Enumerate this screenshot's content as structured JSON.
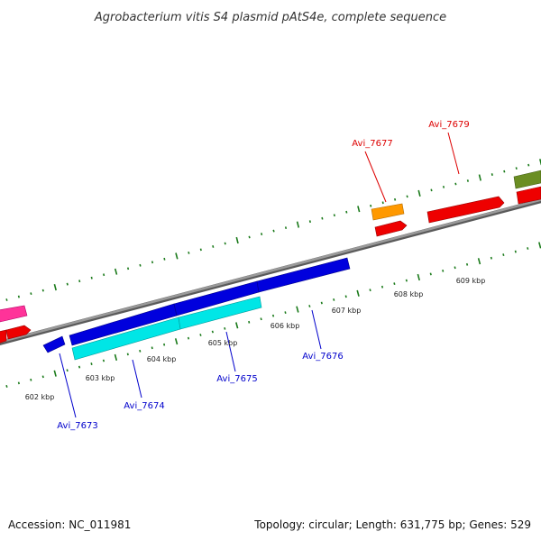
{
  "title": "Agrobacterium vitis S4 plasmid pAtS4e, complete sequence",
  "footer": {
    "accession": "Accession: NC_011981",
    "topology": "Topology: circular; Length: 631,775 bp; Genes: 529"
  },
  "colors": {
    "backbone": "#888888",
    "tick": "#1a7a1a",
    "forward_label": "#dd0000",
    "reverse_label": "#0000cc",
    "blue": "#0000dd",
    "cyan": "#00e6e6",
    "red": "#ee0000",
    "orange": "#ff9900",
    "olive": "#6b8e23",
    "pink": "#ff3399"
  },
  "scale": {
    "labels": [
      "602 kbp",
      "603 kbp",
      "604 kbp",
      "605 kbp",
      "606 kbp",
      "607 kbp",
      "608 kbp",
      "609 kbp"
    ]
  },
  "gene_labels": [
    {
      "text": "Avi_7677",
      "strand": "forward"
    },
    {
      "text": "Avi_7679",
      "strand": "forward"
    },
    {
      "text": "Avi_7673",
      "strand": "reverse"
    },
    {
      "text": "Avi_7674",
      "strand": "reverse"
    },
    {
      "text": "Avi_7675",
      "strand": "reverse"
    },
    {
      "text": "Avi_7676",
      "strand": "reverse"
    }
  ]
}
